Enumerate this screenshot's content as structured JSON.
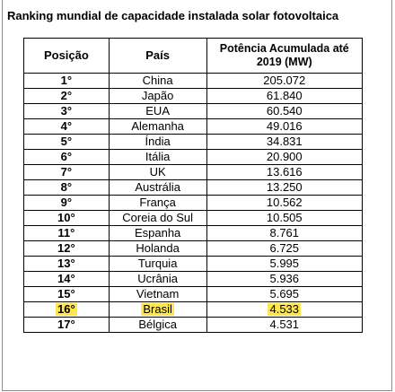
{
  "title": "Ranking mundial de capacidade instalada solar fotovoltaica",
  "headers": {
    "position": "Posição",
    "country": "País",
    "power": "Potência Acumulada até 2019 (MW)"
  },
  "highlight_color": "#ffe64d",
  "rows": [
    {
      "pos": "1°",
      "country": "China",
      "power": "205.072",
      "highlight": false
    },
    {
      "pos": "2°",
      "country": "Japão",
      "power": "61.840",
      "highlight": false
    },
    {
      "pos": "3°",
      "country": "EUA",
      "power": "60.540",
      "highlight": false
    },
    {
      "pos": "4°",
      "country": "Alemanha",
      "power": "49.016",
      "highlight": false
    },
    {
      "pos": "5°",
      "country": "Índia",
      "power": "34.831",
      "highlight": false
    },
    {
      "pos": "6°",
      "country": "Itália",
      "power": "20.900",
      "highlight": false
    },
    {
      "pos": "7°",
      "country": "UK",
      "power": "13.616",
      "highlight": false
    },
    {
      "pos": "8°",
      "country": "Austrália",
      "power": "13.250",
      "highlight": false
    },
    {
      "pos": "9°",
      "country": "França",
      "power": "10.562",
      "highlight": false
    },
    {
      "pos": "10°",
      "country": "Coreia do Sul",
      "power": "10.505",
      "highlight": false
    },
    {
      "pos": "11°",
      "country": "Espanha",
      "power": "8.761",
      "highlight": false
    },
    {
      "pos": "12°",
      "country": "Holanda",
      "power": "6.725",
      "highlight": false
    },
    {
      "pos": "13°",
      "country": "Turquia",
      "power": "5.995",
      "highlight": false
    },
    {
      "pos": "14°",
      "country": "Ucrânia",
      "power": "5.936",
      "highlight": false
    },
    {
      "pos": "15°",
      "country": "Vietnam",
      "power": "5.695",
      "highlight": false
    },
    {
      "pos": "16°",
      "country": "Brasil",
      "power": "4.533",
      "highlight": true
    },
    {
      "pos": "17°",
      "country": "Bélgica",
      "power": "4.531",
      "highlight": false
    }
  ]
}
